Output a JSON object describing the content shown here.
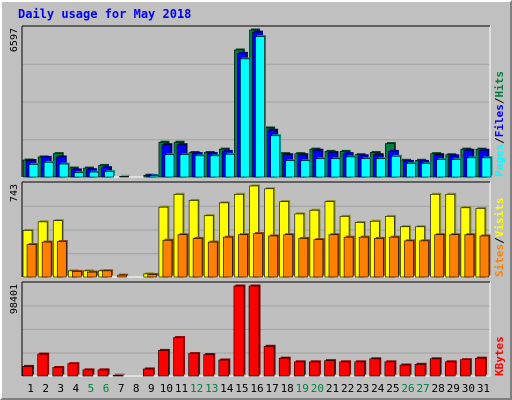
{
  "title": "Daily usage for May 2018",
  "colors": {
    "frame_bg": "#c0c0c0",
    "plot_bg": "#bfbfbf",
    "grid": "#a0a0a0",
    "pages": "#00ffff",
    "files": "#0000ff",
    "hits": "#008040",
    "sites": "#ff8000",
    "visits": "#ffff00",
    "kbytes": "#ff0000",
    "title": "#0000ff",
    "weekend_label": "#008040",
    "weekday_label": "#000000"
  },
  "chart_data": [
    {
      "type": "bar",
      "panel": "top",
      "ymax_label": "6597",
      "ylim": [
        0,
        6597
      ],
      "legend": {
        "placement": "right-vertical",
        "items": [
          "Pages",
          "/",
          "Files",
          "/",
          "Hits"
        ]
      },
      "categories": [
        "1",
        "2",
        "3",
        "4",
        "5",
        "6",
        "7",
        "8",
        "9",
        "10",
        "11",
        "12",
        "13",
        "14",
        "15",
        "16",
        "17",
        "18",
        "19",
        "20",
        "21",
        "22",
        "23",
        "24",
        "25",
        "26",
        "27",
        "28",
        "29",
        "30",
        "31"
      ],
      "series": [
        {
          "name": "Hits",
          "values": [
            760,
            900,
            1050,
            400,
            400,
            520,
            0,
            0,
            80,
            1560,
            1560,
            1100,
            1100,
            1250,
            5700,
            6597,
            2200,
            1050,
            1050,
            1250,
            1150,
            1150,
            1000,
            1100,
            1500,
            750,
            750,
            1050,
            1000,
            1250,
            1250
          ]
        },
        {
          "name": "Files",
          "values": [
            740,
            880,
            900,
            320,
            330,
            420,
            0,
            0,
            70,
            1450,
            1450,
            1050,
            1050,
            1150,
            5550,
            6500,
            2100,
            1000,
            1000,
            1200,
            1100,
            1050,
            950,
            1000,
            1150,
            700,
            700,
            1000,
            950,
            1200,
            1200
          ]
        },
        {
          "name": "Pages",
          "values": [
            560,
            660,
            580,
            190,
            220,
            240,
            30,
            0,
            55,
            1000,
            1000,
            950,
            950,
            1020,
            5300,
            6300,
            1850,
            730,
            730,
            820,
            820,
            900,
            820,
            820,
            930,
            600,
            600,
            780,
            780,
            860,
            860
          ]
        }
      ]
    },
    {
      "type": "bar",
      "panel": "middle",
      "ymax_label": "743",
      "ylim": [
        0,
        743
      ],
      "legend": {
        "placement": "right-vertical",
        "items": [
          "Sites",
          "/",
          "Visits"
        ]
      },
      "categories": [
        "1",
        "2",
        "3",
        "4",
        "5",
        "6",
        "7",
        "8",
        "9",
        "10",
        "11",
        "12",
        "13",
        "14",
        "15",
        "16",
        "17",
        "18",
        "19",
        "20",
        "21",
        "22",
        "23",
        "24",
        "25",
        "26",
        "27",
        "28",
        "29",
        "30",
        "31"
      ],
      "series": [
        {
          "name": "Visits",
          "values": [
            380,
            450,
            460,
            50,
            50,
            50,
            0,
            0,
            25,
            570,
            675,
            625,
            500,
            605,
            675,
            743,
            720,
            615,
            515,
            545,
            615,
            495,
            445,
            455,
            495,
            410,
            410,
            675,
            675,
            565,
            560
          ]
        },
        {
          "name": "Sites",
          "values": [
            265,
            285,
            290,
            45,
            40,
            50,
            15,
            0,
            20,
            300,
            345,
            315,
            285,
            325,
            345,
            355,
            335,
            345,
            315,
            305,
            345,
            325,
            325,
            315,
            325,
            295,
            295,
            345,
            345,
            345,
            335
          ]
        }
      ]
    },
    {
      "type": "bar",
      "panel": "bottom",
      "ymax_label": "98401",
      "ylim": [
        0,
        98401
      ],
      "legend": {
        "placement": "right-vertical",
        "items": [
          "KBytes"
        ]
      },
      "categories": [
        "1",
        "2",
        "3",
        "4",
        "5",
        "6",
        "7",
        "8",
        "9",
        "10",
        "11",
        "12",
        "13",
        "14",
        "15",
        "16",
        "17",
        "18",
        "19",
        "20",
        "21",
        "22",
        "23",
        "24",
        "25",
        "26",
        "27",
        "28",
        "29",
        "30",
        "31"
      ],
      "series": [
        {
          "name": "KBytes",
          "values": [
            10500,
            24000,
            9300,
            13500,
            6700,
            6700,
            800,
            0,
            7700,
            28000,
            42000,
            24500,
            23500,
            17500,
            98401,
            98401,
            32500,
            19500,
            15500,
            15500,
            16800,
            15500,
            15500,
            18800,
            15500,
            12000,
            12800,
            18800,
            15500,
            17800,
            19500
          ]
        }
      ]
    }
  ],
  "day_labels": [
    {
      "text": "1",
      "weekend": false
    },
    {
      "text": "2",
      "weekend": false
    },
    {
      "text": "3",
      "weekend": false
    },
    {
      "text": "4",
      "weekend": false
    },
    {
      "text": "5",
      "weekend": true
    },
    {
      "text": "6",
      "weekend": true
    },
    {
      "text": "7",
      "weekend": false
    },
    {
      "text": "8",
      "weekend": false
    },
    {
      "text": "9",
      "weekend": false
    },
    {
      "text": "10",
      "weekend": false
    },
    {
      "text": "11",
      "weekend": false
    },
    {
      "text": "12",
      "weekend": true
    },
    {
      "text": "13",
      "weekend": true
    },
    {
      "text": "14",
      "weekend": false
    },
    {
      "text": "15",
      "weekend": false
    },
    {
      "text": "16",
      "weekend": false
    },
    {
      "text": "17",
      "weekend": false
    },
    {
      "text": "18",
      "weekend": false
    },
    {
      "text": "19",
      "weekend": true
    },
    {
      "text": "20",
      "weekend": true
    },
    {
      "text": "21",
      "weekend": false
    },
    {
      "text": "22",
      "weekend": false
    },
    {
      "text": "23",
      "weekend": false
    },
    {
      "text": "24",
      "weekend": false
    },
    {
      "text": "25",
      "weekend": false
    },
    {
      "text": "26",
      "weekend": true
    },
    {
      "text": "27",
      "weekend": true
    },
    {
      "text": "28",
      "weekend": false
    },
    {
      "text": "29",
      "weekend": false
    },
    {
      "text": "30",
      "weekend": false
    },
    {
      "text": "31",
      "weekend": false
    }
  ]
}
